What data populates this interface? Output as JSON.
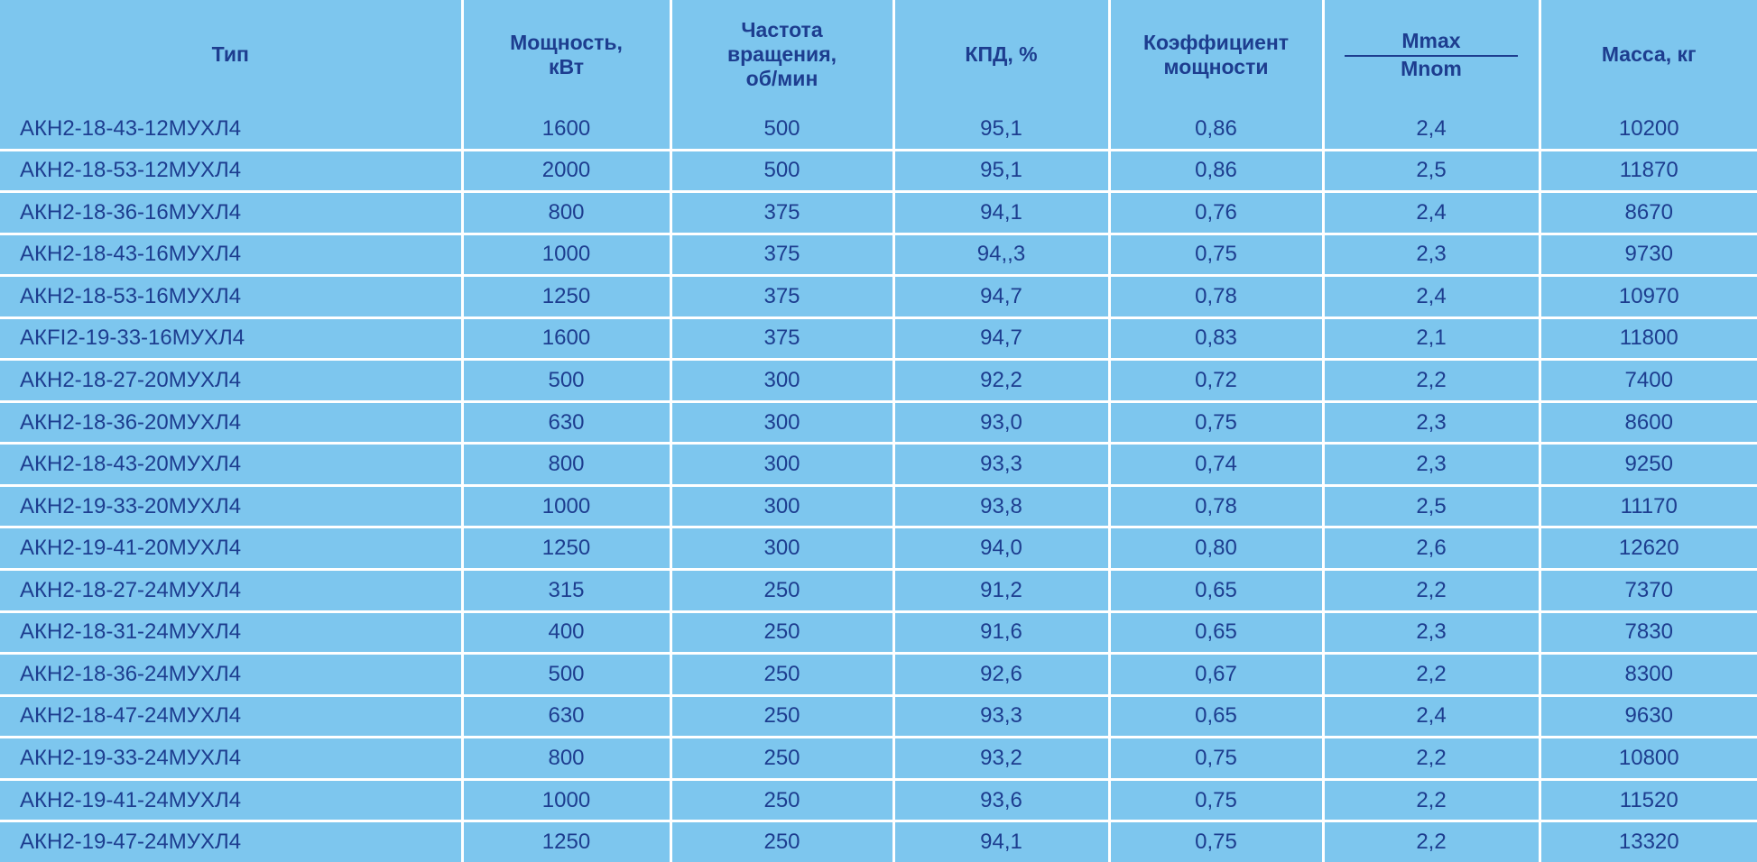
{
  "table": {
    "header": [
      "Тип",
      "Мощность,\nкВт",
      "Частота\nвращения,\nоб/мин",
      "КПД, %",
      "Коэффициент\nмощности",
      {
        "numerator": "Mmax",
        "denominator": "Mnom"
      },
      "Масса, кг"
    ],
    "rows": [
      [
        "АКН2-18-43-12МУХЛ4",
        "1600",
        "500",
        "95,1",
        "0,86",
        "2,4",
        "10200"
      ],
      [
        "АКН2-18-53-12МУХЛ4",
        "2000",
        "500",
        "95,1",
        "0,86",
        "2,5",
        "11870"
      ],
      [
        "АКН2-18-36-16МУХЛ4",
        "800",
        "375",
        "94,1",
        "0,76",
        "2,4",
        "8670"
      ],
      [
        "АКН2-18-43-16МУХЛ4",
        "1000",
        "375",
        "94,,3",
        "0,75",
        "2,3",
        "9730"
      ],
      [
        "АКН2-18-53-16МУХЛ4",
        "1250",
        "375",
        "94,7",
        "0,78",
        "2,4",
        "10970"
      ],
      [
        "АКFI2-19-33-16МУХЛ4",
        "1600",
        "375",
        "94,7",
        "0,83",
        "2,1",
        "11800"
      ],
      [
        "АКН2-18-27-20МУХЛ4",
        "500",
        "300",
        "92,2",
        "0,72",
        "2,2",
        "7400"
      ],
      [
        "АКН2-18-36-20МУХЛ4",
        "630",
        "300",
        "93,0",
        "0,75",
        "2,3",
        "8600"
      ],
      [
        "АКН2-18-43-20МУХЛ4",
        "800",
        "300",
        "93,3",
        "0,74",
        "2,3",
        "9250"
      ],
      [
        "АКН2-19-33-20МУХЛ4",
        "1000",
        "300",
        "93,8",
        "0,78",
        "2,5",
        "11170"
      ],
      [
        "АКН2-19-41-20МУХЛ4",
        "1250",
        "300",
        "94,0",
        "0,80",
        "2,6",
        "12620"
      ],
      [
        "АКН2-18-27-24МУХЛ4",
        "315",
        "250",
        "91,2",
        "0,65",
        "2,2",
        "7370"
      ],
      [
        "АКН2-18-31-24МУХЛ4",
        "400",
        "250",
        "91,6",
        "0,65",
        "2,3",
        "7830"
      ],
      [
        "АКН2-18-36-24МУХЛ4",
        "500",
        "250",
        "92,6",
        "0,67",
        "2,2",
        "8300"
      ],
      [
        "АКН2-18-47-24МУХЛ4",
        "630",
        "250",
        "93,3",
        "0,65",
        "2,4",
        "9630"
      ],
      [
        "АКН2-19-33-24МУХЛ4",
        "800",
        "250",
        "93,2",
        "0,75",
        "2,2",
        "10800"
      ],
      [
        "АКН2-19-41-24МУХЛ4",
        "1000",
        "250",
        "93,6",
        "0,75",
        "2,2",
        "11520"
      ],
      [
        "АКН2-19-47-24МУХЛ4",
        "1250",
        "250",
        "94,1",
        "0,75",
        "2,2",
        "13320"
      ]
    ]
  }
}
